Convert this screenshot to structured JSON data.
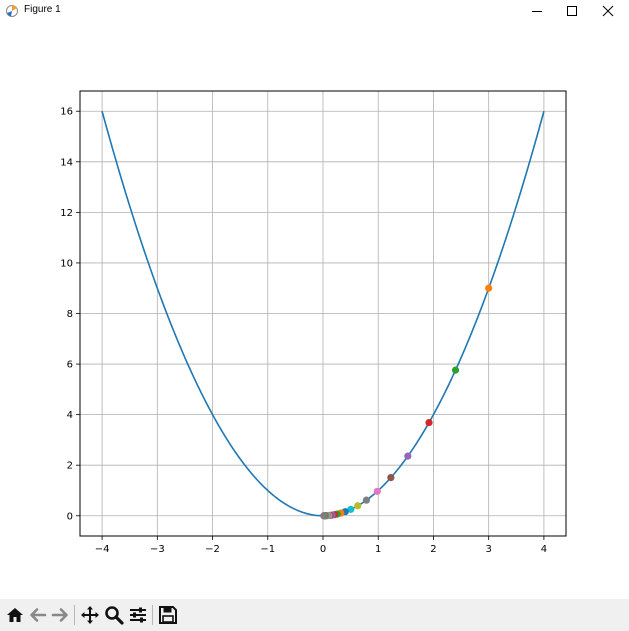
{
  "window": {
    "title": "Figure 1",
    "icon": "matplotlib-icon",
    "controls": [
      "minimize-icon",
      "maximize-icon",
      "close-icon"
    ]
  },
  "toolbar": {
    "buttons": [
      "home-icon",
      "back-arrow-icon",
      "forward-arrow-icon",
      "pan-icon",
      "zoom-icon",
      "configure-subplots-icon",
      "save-icon"
    ]
  },
  "chart_data": {
    "type": "line",
    "title": "",
    "xlabel": "",
    "ylabel": "",
    "xlim": [
      -4.4,
      4.4
    ],
    "ylim": [
      -0.8,
      16.8
    ],
    "x_ticks": [
      -4,
      -3,
      -2,
      -1,
      0,
      1,
      2,
      3,
      4
    ],
    "y_ticks": [
      0,
      2,
      4,
      6,
      8,
      10,
      12,
      14,
      16
    ],
    "x_tick_labels": [
      "−4",
      "−3",
      "−2",
      "−1",
      "0",
      "1",
      "2",
      "3",
      "4"
    ],
    "y_tick_labels": [
      "0",
      "2",
      "4",
      "6",
      "8",
      "10",
      "12",
      "14",
      "16"
    ],
    "grid": true,
    "curve": {
      "function": "y = x^2",
      "x_range": [
        -4,
        4
      ],
      "color": "#1f77b4"
    },
    "points": {
      "x": [
        3.0,
        2.4,
        1.92,
        1.536,
        1.229,
        0.983,
        0.786,
        0.629,
        0.503,
        0.403,
        0.322,
        0.258,
        0.206,
        0.165,
        0.132,
        0.106,
        0.084,
        0.068,
        0.054,
        0.043,
        0.035,
        0.028,
        0.022,
        0.018,
        0.014
      ],
      "y": [
        9.0,
        5.76,
        3.686,
        2.359,
        1.51,
        0.966,
        0.618,
        0.396,
        0.253,
        0.162,
        0.104,
        0.066,
        0.042,
        0.027,
        0.017,
        0.011,
        0.007,
        0.005,
        0.003,
        0.002,
        0.001,
        0.001,
        0.0005,
        0.0003,
        0.0002
      ],
      "colors": [
        "#ff7f0e",
        "#2ca02c",
        "#d62728",
        "#9467bd",
        "#8c564b",
        "#e377c2",
        "#7f7f7f",
        "#bcbd22",
        "#17becf",
        "#1f77b4",
        "#ff7f0e",
        "#2ca02c",
        "#d62728",
        "#9467bd",
        "#8c564b",
        "#e377c2",
        "#7f7f7f",
        "#bcbd22",
        "#17becf",
        "#1f77b4",
        "#ff7f0e",
        "#2ca02c",
        "#d62728",
        "#9467bd",
        "#7f7f7f"
      ]
    }
  }
}
